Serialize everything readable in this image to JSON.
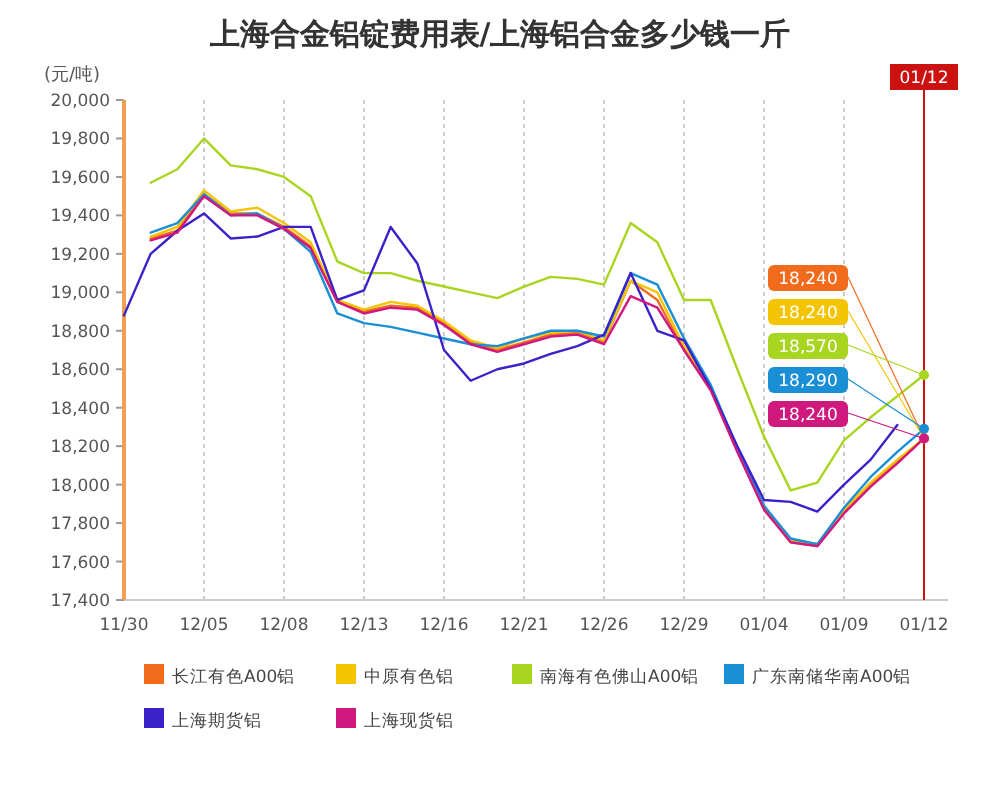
{
  "chart_data": {
    "type": "line",
    "title": "上海合金铝锭费用表/上海铝合金多少钱一斤",
    "ylabel": "(元/吨)",
    "categories": [
      "11/30",
      null,
      null,
      "12/05",
      null,
      null,
      "12/08",
      null,
      null,
      "12/13",
      null,
      null,
      "12/16",
      null,
      null,
      "12/21",
      null,
      null,
      "12/26",
      null,
      null,
      "12/29",
      null,
      null,
      "01/04",
      null,
      null,
      "01/09",
      null,
      null,
      "01/12"
    ],
    "ylim": [
      17400,
      20000
    ],
    "yticks": [
      {
        "value": 17400,
        "label": "17,400"
      },
      {
        "value": 17600,
        "label": "17,600"
      },
      {
        "value": 17800,
        "label": "17,800"
      },
      {
        "value": 18000,
        "label": "18,000"
      },
      {
        "value": 18200,
        "label": "18,200"
      },
      {
        "value": 18400,
        "label": "18,400"
      },
      {
        "value": 18600,
        "label": "18,600"
      },
      {
        "value": 18800,
        "label": "18,800"
      },
      {
        "value": 19000,
        "label": "19,000"
      },
      {
        "value": 19200,
        "label": "19,200"
      },
      {
        "value": 19400,
        "label": "19,400"
      },
      {
        "value": 19600,
        "label": "19,600"
      },
      {
        "value": 19800,
        "label": "19,800"
      },
      {
        "value": 20000,
        "label": "20,000"
      }
    ],
    "grid": "x",
    "legend": "bottom",
    "ref_lines": [
      {
        "axis": "x",
        "value": "01/12",
        "label": "01/12",
        "color": "#cc1111"
      }
    ],
    "series": [
      {
        "name": "长江有色A00铝",
        "color": "#f26b1d",
        "values": [
          null,
          19280,
          19320,
          19510,
          19410,
          19410,
          19340,
          19240,
          18950,
          18900,
          18930,
          18920,
          18840,
          18740,
          18700,
          18740,
          18780,
          18790,
          18740,
          19060,
          18960,
          18700,
          18500,
          18180,
          17880,
          17700,
          17680,
          17860,
          18000,
          18120,
          18240
        ],
        "value_labels": [
          null,
          null,
          null,
          null,
          null,
          null,
          null,
          null,
          null,
          null,
          null,
          null,
          null,
          null,
          null,
          null,
          null,
          null,
          null,
          null,
          null,
          null,
          null,
          null,
          null,
          null,
          null,
          null,
          null,
          null,
          "18,240"
        ]
      },
      {
        "name": "中原有色铝",
        "color": "#f5c400",
        "values": [
          null,
          19290,
          19340,
          19530,
          19420,
          19440,
          19360,
          19260,
          18960,
          18910,
          18950,
          18930,
          18850,
          18750,
          18710,
          18760,
          18790,
          18800,
          18750,
          19060,
          19000,
          18720,
          18500,
          18180,
          17880,
          17710,
          17690,
          17870,
          18010,
          18130,
          18240
        ],
        "value_labels": [
          null,
          null,
          null,
          null,
          null,
          null,
          null,
          null,
          null,
          null,
          null,
          null,
          null,
          null,
          null,
          null,
          null,
          null,
          null,
          null,
          null,
          null,
          null,
          null,
          null,
          null,
          null,
          null,
          null,
          null,
          "18,240"
        ]
      },
      {
        "name": "南海有色佛山A00铝",
        "color": "#a8d520",
        "values": [
          null,
          19570,
          19640,
          19800,
          19660,
          19640,
          19600,
          19500,
          19160,
          19100,
          19100,
          19060,
          19030,
          19000,
          18970,
          19030,
          19080,
          19070,
          19040,
          19360,
          19260,
          18960,
          18960,
          18600,
          18250,
          17970,
          18010,
          18230,
          18350,
          18460,
          18570
        ],
        "value_labels": [
          null,
          null,
          null,
          null,
          null,
          null,
          null,
          null,
          null,
          null,
          null,
          null,
          null,
          null,
          null,
          null,
          null,
          null,
          null,
          null,
          null,
          null,
          null,
          null,
          null,
          null,
          null,
          null,
          null,
          null,
          "18,570"
        ]
      },
      {
        "name": "广东南储华南A00铝",
        "color": "#1a8fd6",
        "values": [
          null,
          19310,
          19360,
          19510,
          19400,
          19410,
          19330,
          19210,
          18890,
          18840,
          18820,
          18790,
          18760,
          18730,
          18720,
          18760,
          18800,
          18800,
          18770,
          19100,
          19040,
          18760,
          18520,
          18190,
          17890,
          17720,
          17690,
          17880,
          18040,
          18170,
          18290
        ],
        "value_labels": [
          null,
          null,
          null,
          null,
          null,
          null,
          null,
          null,
          null,
          null,
          null,
          null,
          null,
          null,
          null,
          null,
          null,
          null,
          null,
          null,
          null,
          null,
          null,
          null,
          null,
          null,
          null,
          null,
          null,
          null,
          "18,290"
        ]
      },
      {
        "name": "上海期货铝",
        "color": "#3a22c8",
        "values": [
          18880,
          19200,
          19320,
          19410,
          19280,
          19290,
          19340,
          19340,
          18960,
          19010,
          19340,
          19150,
          18700,
          18540,
          18600,
          18630,
          18680,
          18720,
          18780,
          19100,
          18800,
          18750,
          18500,
          18200,
          17920,
          17910,
          17860,
          18000,
          18130,
          18310,
          null
        ]
      },
      {
        "name": "上海现货铝",
        "color": "#d0197f",
        "values": [
          null,
          19270,
          19310,
          19500,
          19400,
          19400,
          19330,
          19230,
          18950,
          18890,
          18920,
          18910,
          18830,
          18730,
          18690,
          18730,
          18770,
          18780,
          18730,
          18980,
          18920,
          18700,
          18490,
          18170,
          17870,
          17700,
          17680,
          17850,
          17990,
          18110,
          18240
        ],
        "value_labels": [
          null,
          null,
          null,
          null,
          null,
          null,
          null,
          null,
          null,
          null,
          null,
          null,
          null,
          null,
          null,
          null,
          null,
          null,
          null,
          null,
          null,
          null,
          null,
          null,
          null,
          null,
          null,
          null,
          null,
          null,
          "18,240"
        ]
      }
    ]
  }
}
